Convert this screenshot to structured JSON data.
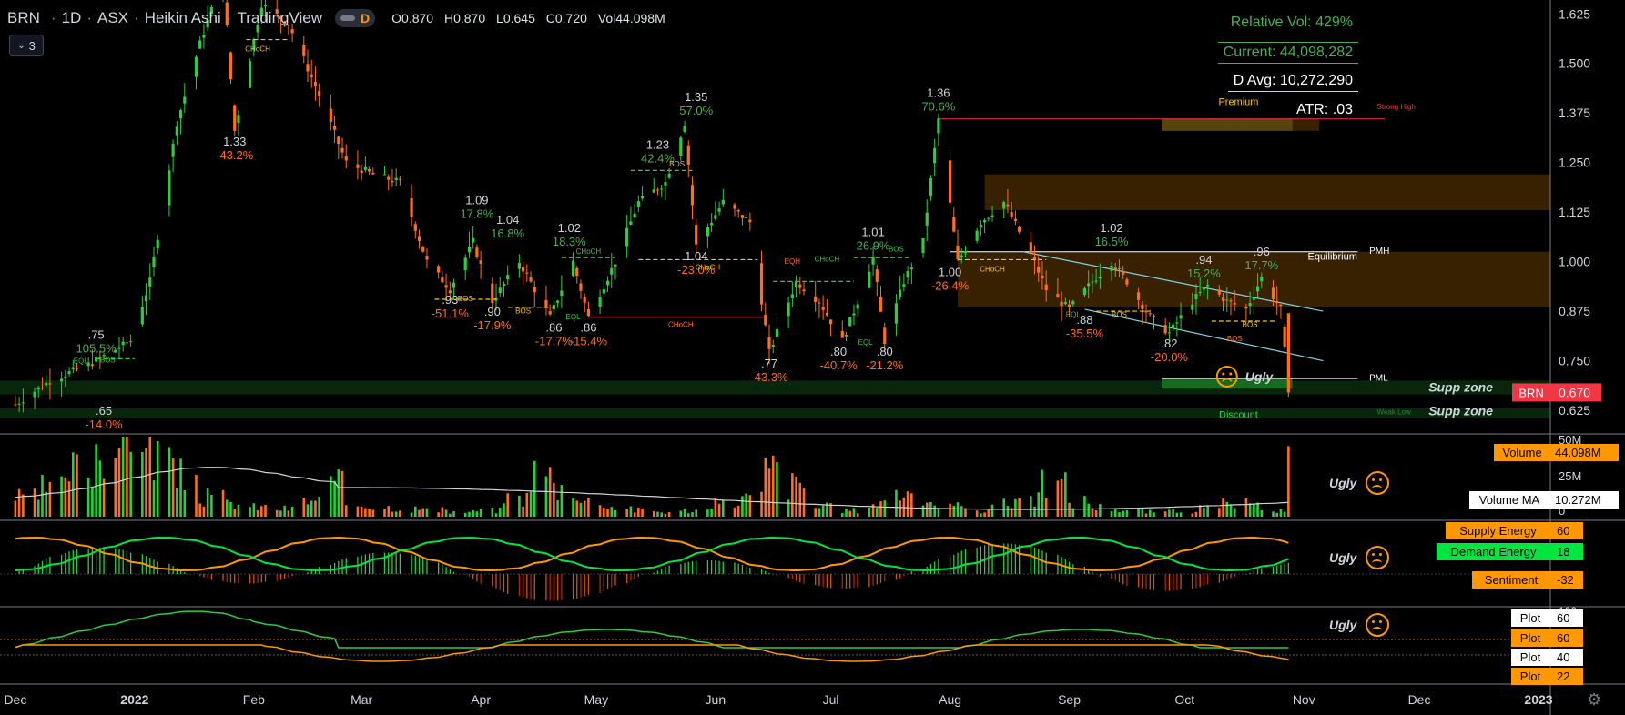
{
  "header": {
    "symbol": "BRN",
    "interval": "1D",
    "exchange": "ASX",
    "chart_style": "Heikin Ashi",
    "source": "TradingView",
    "mode": "D",
    "ohlc": {
      "open": "O0.870",
      "high": "H0.870",
      "low": "L0.645",
      "close": "C0.720",
      "vol": "Vol44.098M"
    }
  },
  "collapse_count": "3",
  "stats": {
    "relative_vol": "Relative Vol: 429%",
    "current": "Current: 44,098,282",
    "d_avg": "D Avg: 10,272,290",
    "atr": "ATR: .03"
  },
  "colors": {
    "bull": "#2ecc40",
    "bear": "#ff6d1f",
    "premium": "#ff9800",
    "discount": "#1b8a2b",
    "accent": "#ff9800",
    "down_red": "#f23645"
  },
  "chart_data": [
    {
      "type": "candlestick",
      "title": "BRN · 1D · ASX · Heikin Ashi",
      "y_ticks": [
        0.625,
        0.75,
        0.875,
        1.0,
        1.125,
        1.25,
        1.375,
        1.5,
        1.625
      ],
      "y_tick_labels": [
        "0.625",
        "0.750",
        "0.875",
        "1.000",
        "1.125",
        "1.250",
        "1.375",
        "1.500",
        "1.625"
      ],
      "ylim": [
        0.57,
        1.66
      ],
      "x_tick_labels": [
        "Dec",
        "2022",
        "Feb",
        "Mar",
        "Apr",
        "May",
        "Jun",
        "Jul",
        "Aug",
        "Sep",
        "Oct",
        "Nov",
        "Dec",
        "2023"
      ],
      "x_tick_dates": [
        "2021-12-01",
        "2022-01-01",
        "2022-02-01",
        "2022-03-01",
        "2022-04-01",
        "2022-05-01",
        "2022-06-01",
        "2022-07-01",
        "2022-08-01",
        "2022-09-01",
        "2022-10-01",
        "2022-11-01",
        "2022-12-01",
        "2023-01-01"
      ],
      "close_path": [
        [
          "2021-12-01",
          0.64
        ],
        [
          "2021-12-10",
          0.7
        ],
        [
          "2021-12-20",
          0.74
        ],
        [
          "2021-12-31",
          0.8
        ],
        [
          "2022-01-05",
          0.95
        ],
        [
          "2022-01-12",
          1.35
        ],
        [
          "2022-01-18",
          1.55
        ],
        [
          "2022-01-24",
          1.72
        ],
        [
          "2022-01-27",
          1.33
        ],
        [
          "2022-02-03",
          1.65
        ],
        [
          "2022-02-10",
          1.6
        ],
        [
          "2022-02-18",
          1.42
        ],
        [
          "2022-02-25",
          1.25
        ],
        [
          "2022-03-04",
          1.22
        ],
        [
          "2022-03-11",
          1.2
        ],
        [
          "2022-03-18",
          1.0
        ],
        [
          "2022-03-24",
          0.93
        ],
        [
          "2022-03-30",
          1.05
        ],
        [
          "2022-04-04",
          0.9
        ],
        [
          "2022-04-11",
          1.0
        ],
        [
          "2022-04-19",
          0.86
        ],
        [
          "2022-04-25",
          1.0
        ],
        [
          "2022-04-29",
          0.86
        ],
        [
          "2022-05-06",
          1.0
        ],
        [
          "2022-05-12",
          1.15
        ],
        [
          "2022-05-19",
          1.2
        ],
        [
          "2022-05-24",
          1.35
        ],
        [
          "2022-05-27",
          1.04
        ],
        [
          "2022-06-03",
          1.15
        ],
        [
          "2022-06-10",
          1.1
        ],
        [
          "2022-06-15",
          0.77
        ],
        [
          "2022-06-22",
          0.95
        ],
        [
          "2022-06-28",
          0.9
        ],
        [
          "2022-07-04",
          0.8
        ],
        [
          "2022-07-08",
          0.9
        ],
        [
          "2022-07-12",
          1.01
        ],
        [
          "2022-07-15",
          0.8
        ],
        [
          "2022-07-20",
          0.95
        ],
        [
          "2022-07-25",
          1.05
        ],
        [
          "2022-07-29",
          1.36
        ],
        [
          "2022-08-03",
          1.0
        ],
        [
          "2022-08-09",
          1.1
        ],
        [
          "2022-08-15",
          1.15
        ],
        [
          "2022-08-22",
          1.02
        ],
        [
          "2022-08-26",
          0.93
        ],
        [
          "2022-09-01",
          0.88
        ],
        [
          "2022-09-07",
          0.95
        ],
        [
          "2022-09-12",
          1.0
        ],
        [
          "2022-09-16",
          0.95
        ],
        [
          "2022-09-22",
          0.86
        ],
        [
          "2022-09-27",
          0.82
        ],
        [
          "2022-10-03",
          0.9
        ],
        [
          "2022-10-07",
          0.94
        ],
        [
          "2022-10-12",
          0.9
        ],
        [
          "2022-10-17",
          0.88
        ],
        [
          "2022-10-21",
          0.96
        ],
        [
          "2022-10-26",
          0.88
        ],
        [
          "2022-10-28",
          0.67
        ]
      ],
      "swing_labels": [
        {
          "date": "2021-12-22",
          "price": 0.75,
          "label": ".75",
          "pct": "105.5%",
          "pos": "high"
        },
        {
          "date": "2021-12-24",
          "price": 0.65,
          "label": ".65",
          "pct": "-14.0%",
          "pos": "low"
        },
        {
          "date": "2022-01-27",
          "price": 1.33,
          "label": "1.33",
          "pct": "-43.2%",
          "pos": "low"
        },
        {
          "date": "2022-03-31",
          "price": 1.09,
          "label": "1.09",
          "pct": "17.8%",
          "pos": "high"
        },
        {
          "date": "2022-03-24",
          "price": 0.93,
          "label": ".93",
          "pct": "-51.1%",
          "pos": "low"
        },
        {
          "date": "2022-04-08",
          "price": 1.04,
          "label": "1.04",
          "pct": "16.8%",
          "pos": "high"
        },
        {
          "date": "2022-04-04",
          "price": 0.9,
          "label": ".90",
          "pct": "-17.9%",
          "pos": "low"
        },
        {
          "date": "2022-04-24",
          "price": 1.02,
          "label": "1.02",
          "pct": "18.3%",
          "pos": "high"
        },
        {
          "date": "2022-04-20",
          "price": 0.86,
          "label": ".86",
          "pct": "-17.7%",
          "pos": "low"
        },
        {
          "date": "2022-04-29",
          "price": 0.86,
          "label": ".86",
          "pct": "-15.4%",
          "pos": "low"
        },
        {
          "date": "2022-05-17",
          "price": 1.23,
          "label": "1.23",
          "pct": "42.4%",
          "pos": "high"
        },
        {
          "date": "2022-05-27",
          "price": 1.35,
          "label": "1.35",
          "pct": "57.0%",
          "pos": "high"
        },
        {
          "date": "2022-05-27",
          "price": 1.04,
          "label": "1.04",
          "pct": "-23.0%",
          "pos": "low"
        },
        {
          "date": "2022-06-15",
          "price": 0.77,
          "label": ".77",
          "pct": "-43.3%",
          "pos": "low"
        },
        {
          "date": "2022-07-03",
          "price": 0.8,
          "label": ".80",
          "pct": "-40.7%",
          "pos": "low"
        },
        {
          "date": "2022-07-12",
          "price": 1.01,
          "label": "1.01",
          "pct": "26.9%",
          "pos": "high"
        },
        {
          "date": "2022-07-15",
          "price": 0.8,
          "label": ".80",
          "pct": "-21.2%",
          "pos": "low"
        },
        {
          "date": "2022-07-29",
          "price": 1.36,
          "label": "1.36",
          "pct": "70.6%",
          "pos": "high"
        },
        {
          "date": "2022-08-01",
          "price": 1.0,
          "label": "1.00",
          "pct": "-26.4%",
          "pos": "low"
        },
        {
          "date": "2022-09-12",
          "price": 1.02,
          "label": "1.02",
          "pct": "16.5%",
          "pos": "high"
        },
        {
          "date": "2022-09-05",
          "price": 0.88,
          "label": ".88",
          "pct": "-35.5%",
          "pos": "low"
        },
        {
          "date": "2022-10-06",
          "price": 0.94,
          "label": ".94",
          "pct": "15.2%",
          "pos": "high"
        },
        {
          "date": "2022-09-27",
          "price": 0.82,
          "label": ".82",
          "pct": "-20.0%",
          "pos": "low"
        },
        {
          "date": "2022-10-21",
          "price": 0.96,
          "label": ".96",
          "pct": "17.7%",
          "pos": "high"
        }
      ],
      "structure_labels": [
        {
          "date": "2022-02-02",
          "price": 1.53,
          "text": "CHoCH",
          "color": "#f5c518"
        },
        {
          "date": "2021-12-25",
          "price": 0.745,
          "text": "BOS",
          "color": "#2ecc40"
        },
        {
          "date": "2021-12-18",
          "price": 0.743,
          "text": "EQL",
          "color": "#2ecc40"
        },
        {
          "date": "2022-03-28",
          "price": 0.9,
          "text": "BOS",
          "color": "#f5c518"
        },
        {
          "date": "2022-04-12",
          "price": 0.87,
          "text": "BOS",
          "color": "#f5c518"
        },
        {
          "date": "2022-04-25",
          "price": 0.855,
          "text": "EQL",
          "color": "#2ecc40"
        },
        {
          "date": "2022-04-29",
          "price": 1.02,
          "text": "CHoCH",
          "color": "#2ecc40"
        },
        {
          "date": "2022-05-22",
          "price": 1.24,
          "text": "BOS",
          "color": "#f5c518"
        },
        {
          "date": "2022-05-30",
          "price": 0.98,
          "text": "CHoCH",
          "color": "#f5c518"
        },
        {
          "date": "2022-05-23",
          "price": 0.835,
          "text": "CHoCH",
          "color": "#ff6d1f"
        },
        {
          "date": "2022-06-21",
          "price": 0.995,
          "text": "EQH",
          "color": "#ff6d1f"
        },
        {
          "date": "2022-06-30",
          "price": 1.0,
          "text": "CHoCH",
          "color": "#2ecc40"
        },
        {
          "date": "2022-07-18",
          "price": 1.025,
          "text": "BOS",
          "color": "#2ecc40"
        },
        {
          "date": "2022-07-10",
          "price": 0.79,
          "text": "EQL",
          "color": "#2ecc40"
        },
        {
          "date": "2022-08-12",
          "price": 0.975,
          "text": "CHoCH",
          "color": "#f5c518"
        },
        {
          "date": "2022-09-02",
          "price": 0.86,
          "text": "EQL",
          "color": "#2ecc40"
        },
        {
          "date": "2022-09-14",
          "price": 0.86,
          "text": "BOS",
          "color": "#f5c518"
        },
        {
          "date": "2022-10-18",
          "price": 0.835,
          "text": "BOS",
          "color": "#f5c518"
        },
        {
          "date": "2022-10-14",
          "price": 0.8,
          "text": "BOS",
          "color": "#ff6d1f"
        }
      ],
      "levels": [
        {
          "name": "Strong High",
          "price": 1.36,
          "color": "#f23645"
        },
        {
          "name": "PMH",
          "price": 1.025,
          "color": "#ffffff"
        },
        {
          "name": "PML",
          "price": 0.705,
          "color": "#ffffff"
        },
        {
          "name": "Weak Low",
          "price": 0.635,
          "color": "#1b8a2b"
        }
      ],
      "zones": [
        {
          "name": "Premium",
          "from": 1.33,
          "to": 1.36,
          "color": "#ff9800"
        },
        {
          "name": "Equilibrium",
          "from": 0.885,
          "to": 1.025,
          "color": "#ff9800"
        },
        {
          "name": "Discount",
          "from": 0.65,
          "to": 0.67,
          "color": "#1b8a2b"
        },
        {
          "name": "Supp zone",
          "from": 0.665,
          "to": 0.7,
          "color": "#1b8a2b"
        },
        {
          "name": "Supp zone 2",
          "from": 0.605,
          "to": 0.63,
          "color": "#1b8a2b"
        },
        {
          "name": "Supply block",
          "from": 1.13,
          "to": 1.22,
          "color": "#ff9800"
        }
      ],
      "zone_labels": {
        "premium": "Premium",
        "equilibrium": "Equilibrium",
        "discount": "Discount",
        "supp1": "Supp zone",
        "supp2": "Supp zone",
        "pmh": "PMH",
        "pml": "PML",
        "strong_high": "Strong High",
        "weak_low": "Weak Low"
      },
      "last_price": {
        "symbol": "BRN",
        "value": "0.670"
      },
      "verdict": "Ugly"
    },
    {
      "type": "bar",
      "name": "Volume",
      "values_millions_sample": [
        12,
        18,
        30,
        45,
        60,
        40,
        25,
        12,
        8,
        6,
        5,
        10,
        20,
        8,
        6,
        5,
        4,
        3,
        4,
        12,
        28,
        18,
        10,
        6,
        4,
        3,
        4,
        8,
        12,
        30,
        20,
        6,
        4,
        8,
        15,
        10,
        6,
        4,
        8,
        12,
        20,
        10,
        6,
        4,
        3,
        4,
        5,
        8,
        6,
        4,
        44.1
      ],
      "ylim": [
        0,
        50
      ],
      "y_tick_labels": [
        "50M",
        "25M",
        "0"
      ],
      "volume_label": "Volume",
      "volume_value": "44.098M",
      "ma_label": "Volume MA",
      "ma_value": "10.272M"
    },
    {
      "type": "line",
      "name": "Energy",
      "series": [
        {
          "name": "Supply Energy",
          "value": "60"
        },
        {
          "name": "Demand Energy",
          "value": "18"
        },
        {
          "name": "Sentiment",
          "value": "-32"
        }
      ]
    },
    {
      "type": "line",
      "name": "Oscillator",
      "y_tick_labels": [
        "100"
      ],
      "series": [
        {
          "name": "Plot",
          "value": "60"
        },
        {
          "name": "Plot",
          "value": "60"
        },
        {
          "name": "Plot",
          "value": "40"
        },
        {
          "name": "Plot",
          "value": "22"
        }
      ]
    }
  ],
  "panes": {
    "volume_verdict": "Ugly",
    "energy_verdict": "Ugly",
    "osc_verdict": "Ugly"
  }
}
